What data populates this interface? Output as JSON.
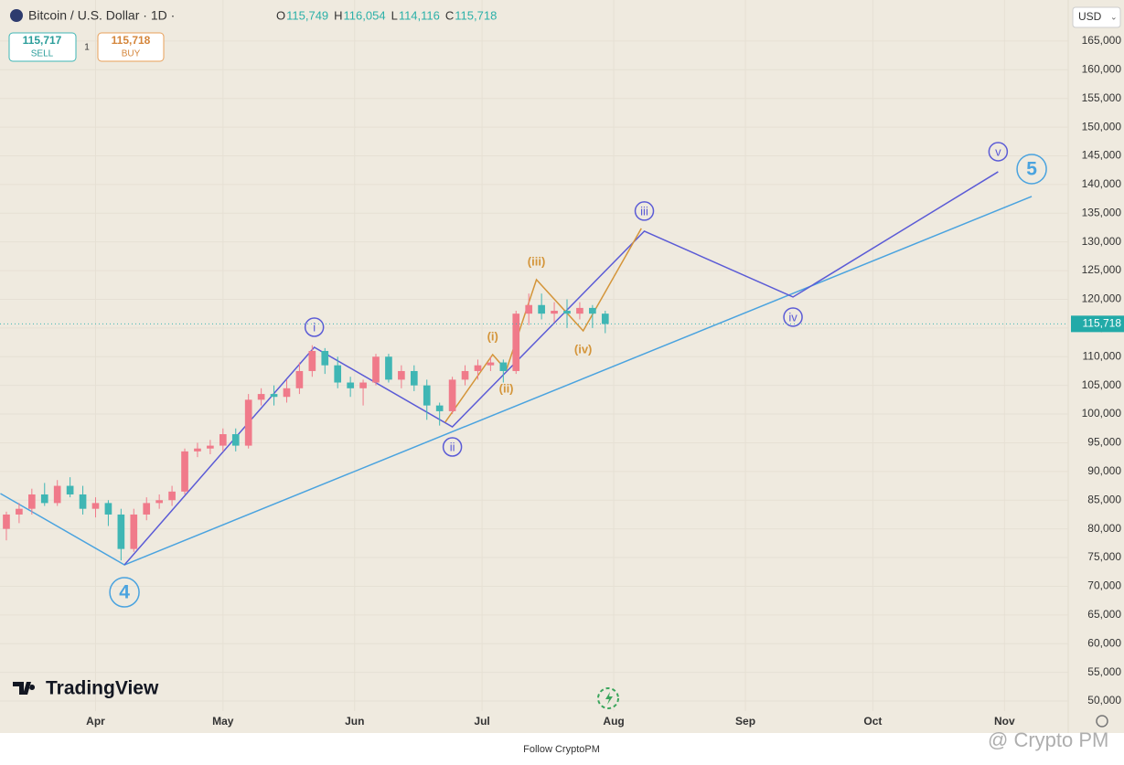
{
  "header": {
    "symbol": "Bitcoin / U.S. Dollar · 1D ·",
    "ohlc": [
      {
        "key": "O",
        "value": "115,749"
      },
      {
        "key": "H",
        "value": "116,054"
      },
      {
        "key": "L",
        "value": "114,116"
      },
      {
        "key": "C",
        "value": "115,718"
      }
    ],
    "sell": {
      "price": "115,717",
      "label": "SELL"
    },
    "spread": "1",
    "buy": {
      "price": "115,718",
      "label": "BUY"
    },
    "currency": "USD",
    "logo": "TradingView"
  },
  "footer": {
    "caption": "Follow CryptoPM",
    "watermark": "@ Crypto PM"
  },
  "chart_data": {
    "type": "candlestick",
    "up_color": "#f07a8a",
    "down_color": "#3fb6b4",
    "grid": true,
    "x": [
      70,
      73,
      76,
      79,
      82,
      85,
      88,
      91,
      94,
      97,
      100,
      103,
      106,
      109,
      112,
      115,
      118,
      121,
      124,
      127,
      130,
      133,
      136,
      139,
      142,
      145,
      148,
      151,
      154,
      157,
      160,
      163,
      166,
      169,
      172,
      175,
      178,
      181,
      184,
      187,
      190,
      193,
      196,
      199,
      202,
      205,
      208,
      211
    ],
    "open": [
      80000,
      82500,
      83500,
      86000,
      84500,
      87500,
      86000,
      83500,
      84500,
      82500,
      76500,
      82500,
      84500,
      85000,
      86500,
      93500,
      94000,
      94500,
      96500,
      94500,
      102500,
      103500,
      103000,
      104500,
      107500,
      111000,
      108500,
      105500,
      104500,
      105500,
      110000,
      106000,
      107500,
      105000,
      101500,
      100500,
      106000,
      107500,
      108500,
      109000,
      107500,
      117500,
      119000,
      117500,
      118000,
      117500,
      118500,
      117500
    ],
    "high": [
      83000,
      84500,
      87000,
      88000,
      88500,
      89000,
      87500,
      85500,
      85000,
      83500,
      83500,
      85500,
      86000,
      87500,
      94000,
      95000,
      95500,
      97500,
      97500,
      103500,
      104500,
      105000,
      106000,
      109000,
      112000,
      111500,
      110000,
      106500,
      106000,
      110500,
      110500,
      108500,
      108500,
      106000,
      102000,
      106500,
      108500,
      109500,
      110000,
      109500,
      118000,
      121000,
      121000,
      119500,
      120000,
      119500,
      119000,
      118000
    ],
    "low": [
      78000,
      81000,
      82500,
      84000,
      84000,
      85500,
      82500,
      82000,
      80500,
      74500,
      76000,
      81500,
      83500,
      84000,
      86000,
      92500,
      93000,
      93500,
      93500,
      94000,
      101500,
      101500,
      102000,
      103500,
      106500,
      107000,
      104500,
      103000,
      101500,
      105000,
      105500,
      104500,
      104000,
      99000,
      98000,
      100000,
      105000,
      106000,
      107500,
      105500,
      107000,
      115500,
      116500,
      116000,
      115000,
      116500,
      115000,
      114100
    ],
    "close": [
      82500,
      83500,
      86000,
      84500,
      87500,
      86000,
      83500,
      84500,
      82500,
      76500,
      82500,
      84500,
      85000,
      86500,
      93500,
      94000,
      94500,
      96500,
      94500,
      102500,
      103500,
      103000,
      104500,
      107500,
      111000,
      108500,
      105500,
      104500,
      105500,
      110000,
      106000,
      107500,
      105000,
      101500,
      100500,
      106000,
      107500,
      108500,
      109000,
      107500,
      117500,
      119000,
      117500,
      118000,
      117500,
      118500,
      117500,
      115700
    ],
    "xlim": [
      68.5,
      320
    ],
    "xticks": [
      {
        "value": 91,
        "label": "Apr"
      },
      {
        "value": 121,
        "label": "May"
      },
      {
        "value": 152,
        "label": "Jun"
      },
      {
        "value": 182,
        "label": "Jul"
      },
      {
        "value": 213,
        "label": "Aug"
      },
      {
        "value": 244,
        "label": "Sep"
      },
      {
        "value": 274,
        "label": "Oct"
      },
      {
        "value": 305,
        "label": "Nov"
      }
    ],
    "ylim": [
      44750,
      172150
    ],
    "yticks": [
      {
        "value": 50000,
        "label": "50,000"
      },
      {
        "value": 55000,
        "label": "55,000"
      },
      {
        "value": 60000,
        "label": "60,000"
      },
      {
        "value": 65000,
        "label": "65,000"
      },
      {
        "value": 70000,
        "label": "70,000"
      },
      {
        "value": 75000,
        "label": "75,000"
      },
      {
        "value": 80000,
        "label": "80,000"
      },
      {
        "value": 85000,
        "label": "85,000"
      },
      {
        "value": 90000,
        "label": "90,000"
      },
      {
        "value": 95000,
        "label": "95,000"
      },
      {
        "value": 100000,
        "label": "100,000"
      },
      {
        "value": 105000,
        "label": "105,000"
      },
      {
        "value": 110000,
        "label": "110,000"
      },
      {
        "value": 115000,
        "label": "115,000"
      },
      {
        "value": 120000,
        "label": "120,000"
      },
      {
        "value": 125000,
        "label": "125,000"
      },
      {
        "value": 130000,
        "label": "130,000"
      },
      {
        "value": 135000,
        "label": "135,000"
      },
      {
        "value": 140000,
        "label": "140,000"
      },
      {
        "value": 145000,
        "label": "145,000"
      },
      {
        "value": 150000,
        "label": "150,000"
      },
      {
        "value": 155000,
        "label": "155,000"
      },
      {
        "value": 160000,
        "label": "160,000"
      },
      {
        "value": 165000,
        "label": "165,000"
      }
    ],
    "last_price": {
      "value": 115718,
      "label": "115,718"
    },
    "waves": [
      {
        "color": "#4aa3df",
        "label_style": "circle-large",
        "x": [
          68.6,
          97.8,
          311.4
        ],
        "y": [
          86150,
          73730,
          137920
        ],
        "labels": [
          null,
          "4",
          "5"
        ]
      },
      {
        "color": "#5b5bd6",
        "label_style": "circle",
        "x": [
          97.8,
          142.5,
          175,
          220.2,
          255.2,
          303.5
        ],
        "y": [
          73730,
          111640,
          97780,
          131870,
          120400,
          142220
        ],
        "labels": [
          null,
          "i",
          "ii",
          "iii",
          "iv",
          "v"
        ]
      },
      {
        "color": "#d4953a",
        "label_style": "plain",
        "x": [
          173.3,
          184.5,
          187.7,
          194.8,
          205.8,
          219.5
        ],
        "y": [
          98570,
          110360,
          107660,
          123420,
          114510,
          132350
        ],
        "labels": [
          null,
          "(i)",
          "(ii)",
          "(iii)",
          "(iv)",
          null
        ]
      }
    ]
  }
}
